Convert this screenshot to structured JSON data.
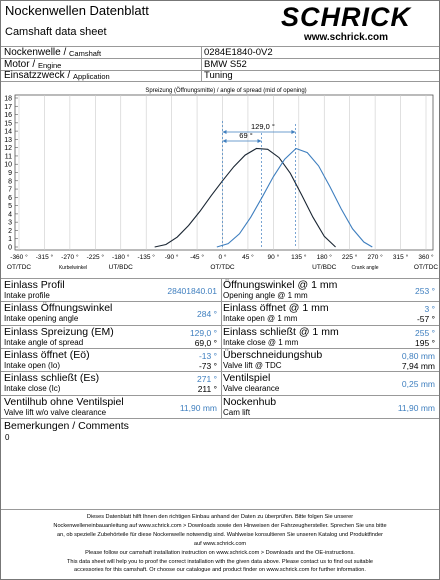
{
  "header": {
    "title": "Nockenwellen Datenblatt",
    "subtitle": "Camshaft data sheet",
    "brand": "SCHRICK",
    "website": "www.schrick.com"
  },
  "info": [
    {
      "label": "Nockenwelle /",
      "sublabel": "Camshaft",
      "value": "0284E1840-0V2"
    },
    {
      "label": "Motor /",
      "sublabel": "Engine",
      "value": "BMW S52"
    },
    {
      "label": "Einsatzzweck /",
      "sublabel": "Application",
      "value": "Tuning"
    }
  ],
  "chart_data": {
    "type": "line",
    "title": "Spreizung (Öffnungsmitte) / angle of spread (mid of opening)",
    "xlim": [
      -360,
      360
    ],
    "xticks": [
      {
        "value": -360,
        "label": "-360 °"
      },
      {
        "value": -315,
        "label": "-315 °"
      },
      {
        "value": -270,
        "label": "-270 °"
      },
      {
        "value": -225,
        "label": "-225 °"
      },
      {
        "value": -180,
        "label": "-180 °"
      },
      {
        "value": -135,
        "label": "-135 °"
      },
      {
        "value": -90,
        "label": "-90 °"
      },
      {
        "value": -45,
        "label": "-45 °"
      },
      {
        "value": 0,
        "label": "0 °"
      },
      {
        "value": 45,
        "label": "45 °"
      },
      {
        "value": 90,
        "label": "90 °"
      },
      {
        "value": 135,
        "label": "135 °"
      },
      {
        "value": 180,
        "label": "180 °"
      },
      {
        "value": 225,
        "label": "225 °"
      },
      {
        "value": 270,
        "label": "270 °"
      },
      {
        "value": 315,
        "label": "315 °"
      },
      {
        "value": 360,
        "label": "360 °"
      }
    ],
    "ylim": [
      0,
      18
    ],
    "yticks": [
      0,
      1,
      2,
      3,
      4,
      5,
      6,
      7,
      8,
      9,
      10,
      11,
      12,
      13,
      14,
      15,
      16,
      17,
      18
    ],
    "grid": true,
    "series": [
      {
        "color": "#1a2633",
        "x": [
          -120,
          -100,
          -80,
          -60,
          -40,
          -20,
          0,
          20,
          40,
          60,
          80,
          100,
          120,
          140,
          160,
          180,
          200
        ],
        "values": [
          0,
          0.3,
          1.2,
          2.6,
          4.3,
          6.2,
          8.0,
          9.7,
          11.1,
          11.9,
          11.8,
          10.8,
          8.9,
          6.3,
          3.6,
          1.3,
          0
        ]
      },
      {
        "color": "#3f7fbf",
        "x": [
          -10,
          10,
          30,
          50,
          70,
          90,
          110,
          130,
          150,
          170,
          190,
          210,
          230,
          250,
          265
        ],
        "values": [
          0,
          0.4,
          1.6,
          3.6,
          6.0,
          8.5,
          10.6,
          11.9,
          11.4,
          9.8,
          7.3,
          4.6,
          2.2,
          0.6,
          0
        ]
      }
    ],
    "annotations": [
      {
        "value": 69,
        "label": "69 °"
      },
      {
        "value": 129,
        "label": "129,0 °"
      }
    ],
    "tdc_labels": [
      {
        "value": -360,
        "label": "OT/TDC"
      },
      {
        "value": -180,
        "label": "UT/BDC"
      },
      {
        "value": 0,
        "label": "OT/TDC"
      },
      {
        "value": 180,
        "label": "UT/BDC"
      },
      {
        "value": 360,
        "label": "OT/TDC"
      }
    ],
    "xlabel": "Kurbelwinkel",
    "xlabel2": "Crank angle"
  },
  "specs": {
    "left": [
      {
        "label": "Einlass Profil",
        "sublabel": "Intake profile",
        "value": "28401840.01"
      },
      {
        "label": "Einlass Öffnungswinkel",
        "sublabel": "Intake opening angle",
        "value": "284 °"
      },
      {
        "label": "Einlass Spreizung (EM)",
        "sublabel": "Intake angle of spread",
        "value": "129,0 °",
        "value2": "69,0 °"
      },
      {
        "label": "Einlass öffnet (Eö)",
        "sublabel": "Intake open (Io)",
        "value": "-13 °",
        "value2": "-73 °"
      },
      {
        "label": "Einlass schließt (Es)",
        "sublabel": "Intake close (Ic)",
        "value": "271 °",
        "value2": "211 °"
      },
      {
        "label": "Ventilhub ohne Ventilspiel",
        "sublabel": "Valve lift w/o valve clearance",
        "value": "11,90 mm"
      }
    ],
    "right": [
      {
        "label": "Öffnungswinkel @ 1 mm",
        "sublabel": "Opening angle @ 1 mm",
        "value": "253 °"
      },
      {
        "label": "Einlass öffnet @ 1 mm",
        "sublabel": "Intake open @ 1 mm",
        "value": "3 °",
        "value2": "-57 °"
      },
      {
        "label": "Einlass schließt @ 1 mm",
        "sublabel": "Intake close @ 1 mm",
        "value": "255 °",
        "value2": "195 °"
      },
      {
        "label": "Überschneidungshub",
        "sublabel": "Valve lift @ TDC",
        "value": "0,80 mm",
        "value2": "7,94 mm"
      },
      {
        "label": "Ventilspiel",
        "sublabel": "Valve clearance",
        "value": "0,25 mm"
      },
      {
        "label": "Nockenhub",
        "sublabel": "Cam lift",
        "value": "11,90 mm"
      }
    ]
  },
  "comments": {
    "label": "Bemerkungen / Comments",
    "text": "0"
  },
  "footer": [
    "Dieses Datenblatt hilft Ihnen den richtigen Einbau anhand der Daten zu überprüfen. Bitte folgen Sie unserer",
    "Nockenwelleneinbauanleitung auf www.schrick.com > Downloads  sowie den Hinweisen der Fahrzeughersteller. Sprechen Sie uns bitte",
    "an, ob spezielle  Zubehörteile für diese Nockenwelle notwendig sind. Wahlweise konsultieren Sie unseren Katalog und Produktfinder",
    "auf www.schrick.com",
    "Please follow our camshaft installation instruction on www.schrick.com > Downloads and the OE-instructions.",
    "This data sheet will help you to proof the correct installation with the given data above. Please contact us to find out suitable",
    "accessories for this camshaft. Or choose our catalogue and product finder on www.schrick.com for further information."
  ]
}
